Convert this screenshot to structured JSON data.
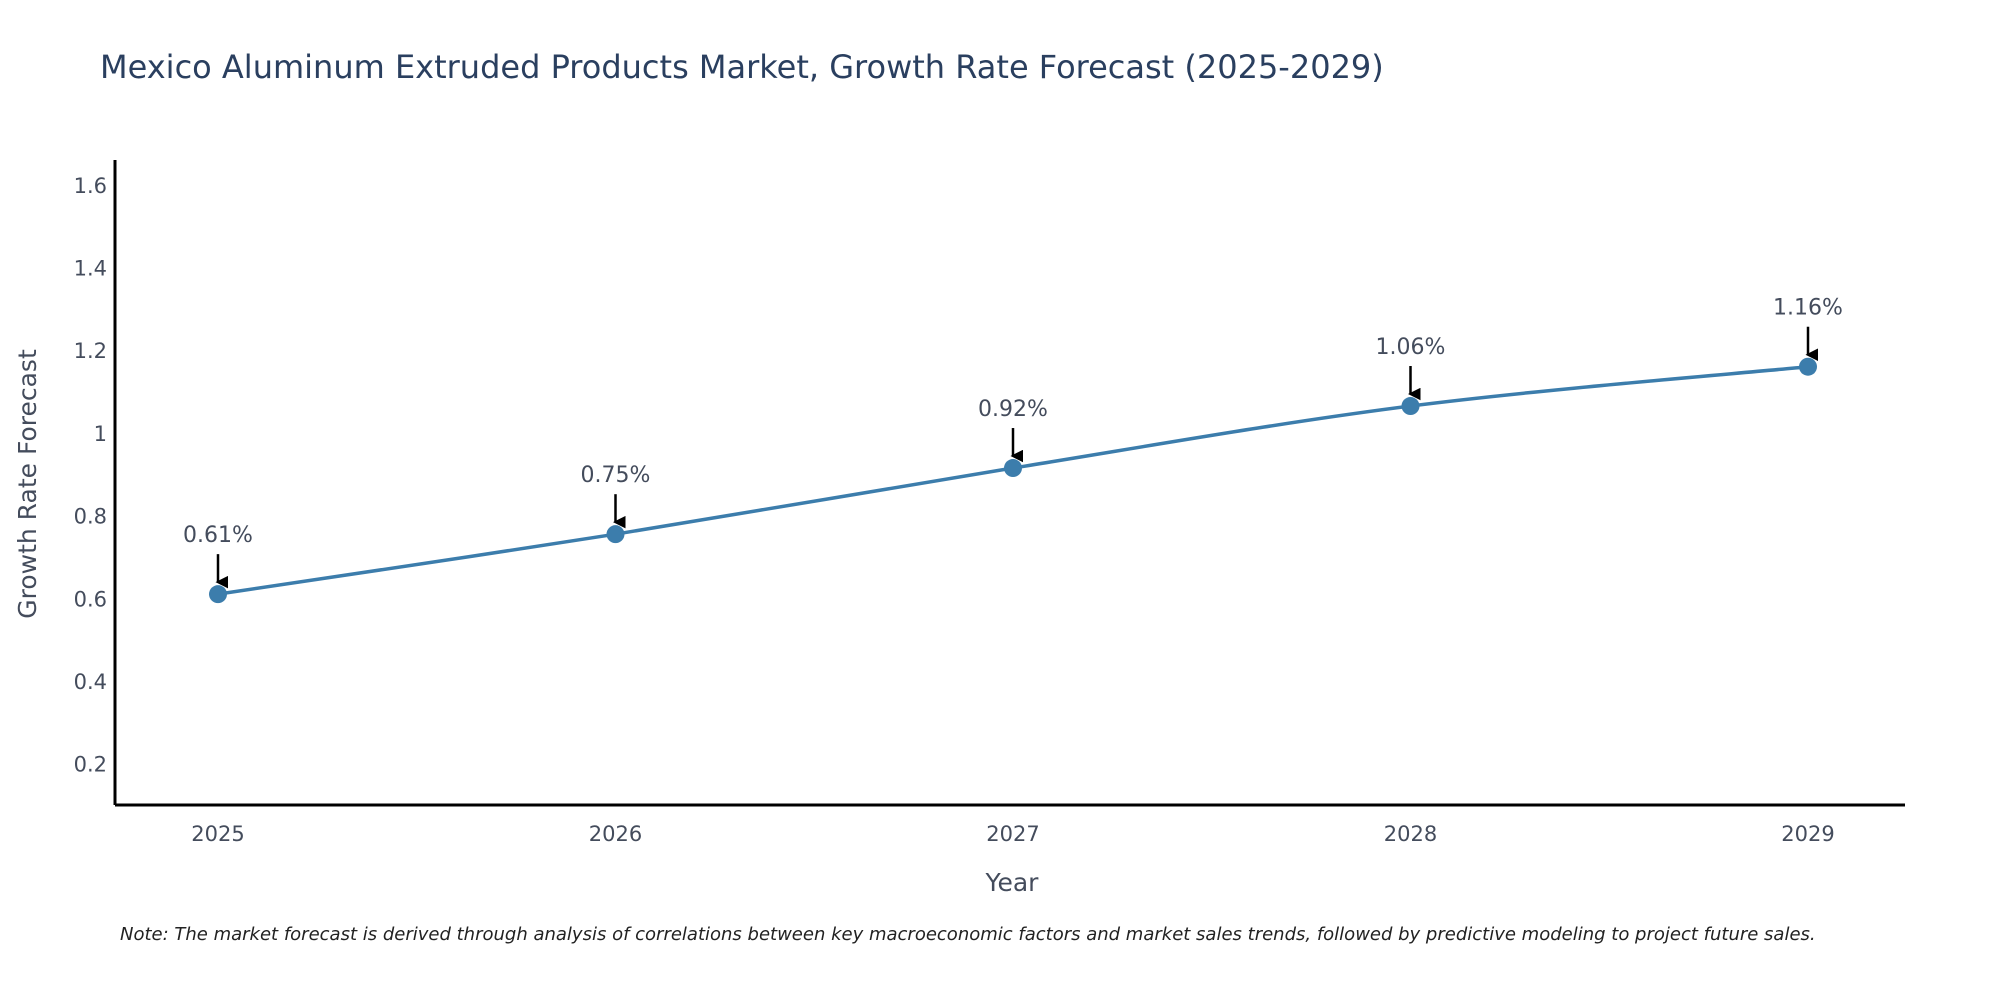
{
  "chart_data": {
    "type": "line",
    "title": "Mexico Aluminum Extruded Products Market, Growth Rate Forecast (2025-2029)",
    "xlabel": "Year",
    "ylabel": "Growth Rate Forecast",
    "categories": [
      "2025",
      "2026",
      "2027",
      "2028",
      "2029"
    ],
    "values": [
      0.61,
      0.755,
      0.915,
      1.065,
      1.16
    ],
    "data_labels": [
      "0.61%",
      "0.75%",
      "0.92%",
      "1.06%",
      "1.16%"
    ],
    "ylim": [
      0.1,
      1.66
    ],
    "yticks": [
      0.2,
      0.4,
      0.6,
      0.8,
      1.0,
      1.2,
      1.4,
      1.6
    ],
    "ytick_labels": [
      "0.2",
      "0.4",
      "0.6",
      "0.8",
      "1",
      "1.2",
      "1.4",
      "1.6"
    ],
    "grid": false,
    "line_color": "#3c7dac",
    "marker_color": "#3c7dac",
    "arrow_color": "#000000"
  },
  "note": "Note: The market forecast is derived through analysis of correlations between key macroeconomic factors and market sales trends, followed by predictive modeling to project future sales."
}
